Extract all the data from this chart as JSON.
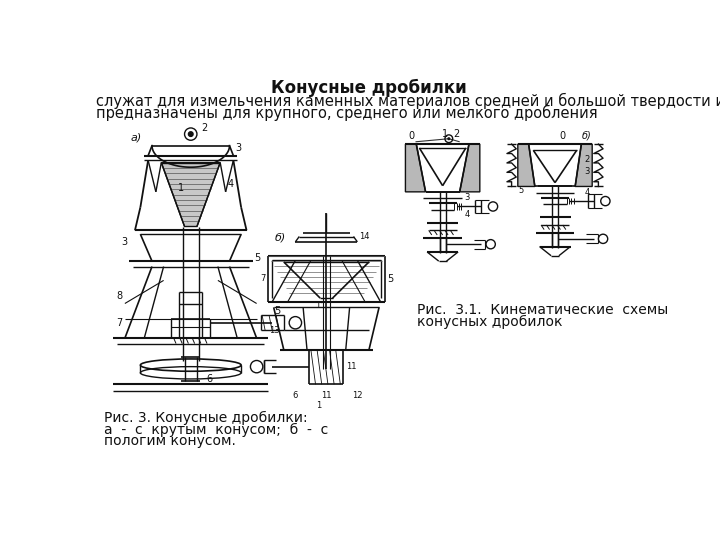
{
  "title": "Конусные дробилки",
  "subtitle_line1": "служат для измельчения каменных материалов средней и большой твердости и",
  "subtitle_line2": "предназначены для крупного, среднего или мелкого дробления",
  "caption1_line1": "Рис. 3. Конусные дробилки:",
  "caption1_line2": "а  -  с  крутым  конусом;  б  -  с",
  "caption1_line3": "пологим конусом.",
  "caption2_line1": "Рис.  3.1.  Кинематические  схемы",
  "caption2_line2": "конусных дробилок",
  "bg_color": "#ffffff",
  "text_color": "#111111",
  "title_fontsize": 12,
  "body_fontsize": 10.5,
  "caption_fontsize": 10
}
